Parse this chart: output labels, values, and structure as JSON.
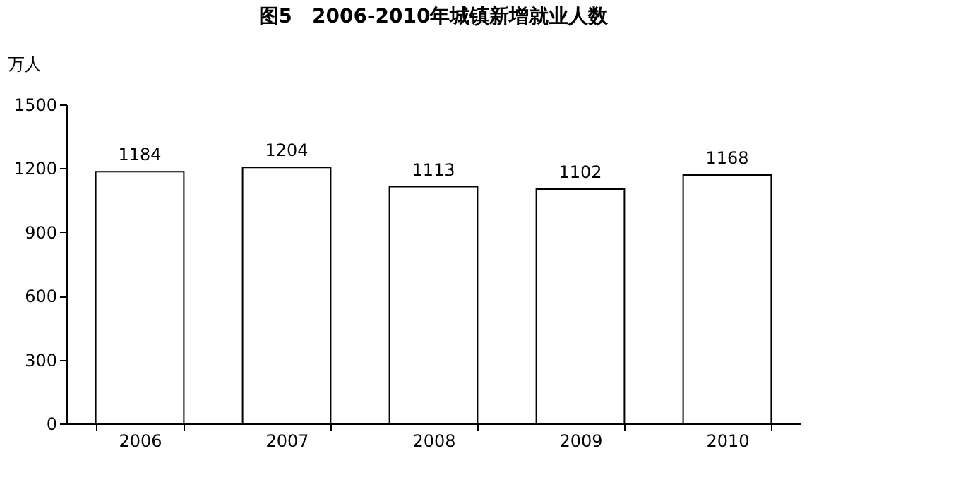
{
  "chart_data": {
    "type": "bar",
    "title": "图5　2006-2010年城镇新增就业人数",
    "ylabel": "万人",
    "categories": [
      "2006",
      "2007",
      "2008",
      "2009",
      "2010"
    ],
    "values": [
      1184,
      1204,
      1113,
      1102,
      1168
    ],
    "color": "#ffffff",
    "ylim": [
      0,
      1500
    ],
    "yticks": [
      0,
      300,
      600,
      900,
      1200,
      1500
    ],
    "grid": false,
    "data_labels": true
  }
}
